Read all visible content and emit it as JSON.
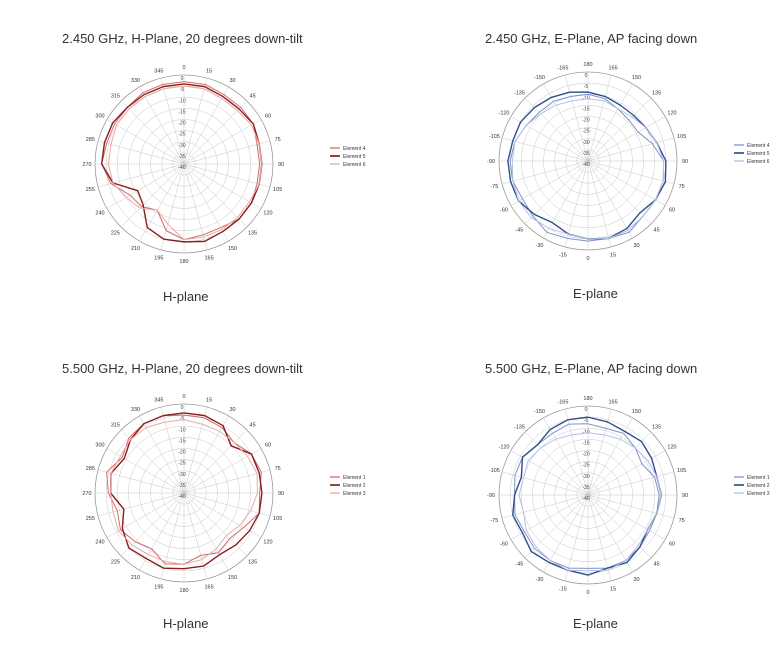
{
  "chart_data": [
    {
      "type": "polar-line",
      "title": "2.450 GHz, H-Plane, 20 degrees down-tilt",
      "subtitle": "H-plane",
      "angle_labels": [
        "0",
        "15",
        "30",
        "45",
        "60",
        "75",
        "90",
        "105",
        "120",
        "135",
        "150",
        "165",
        "180",
        "195",
        "210",
        "225",
        "240",
        "255",
        "270",
        "285",
        "300",
        "315",
        "330",
        "345"
      ],
      "radial_labels": [
        "0",
        "-5",
        "-10",
        "-15",
        "-20",
        "-25",
        "-30",
        "-35",
        "-40"
      ],
      "rlim": [
        -40,
        0
      ],
      "series": [
        {
          "name": "Element 4",
          "color": "#d46a6a",
          "width": 1.0,
          "angles": [
            0,
            15,
            30,
            45,
            60,
            75,
            90,
            105,
            120,
            135,
            150,
            165,
            180,
            195,
            210,
            225,
            240,
            255,
            270,
            285,
            300,
            315,
            330,
            345,
            360
          ],
          "values": [
            -3,
            -3,
            -4,
            -4,
            -4,
            -6,
            -6,
            -6,
            -5,
            -5,
            -7,
            -7,
            -6,
            -9,
            -16,
            -13,
            -12,
            -6,
            -3,
            -4,
            -4,
            -4,
            -3,
            -3,
            -3
          ]
        },
        {
          "name": "Element 5",
          "color": "#8b1e1e",
          "width": 1.4,
          "angles": [
            0,
            15,
            30,
            45,
            60,
            75,
            90,
            105,
            120,
            135,
            150,
            165,
            180,
            195,
            210,
            225,
            240,
            255,
            270,
            285,
            300,
            315,
            330,
            345,
            360
          ],
          "values": [
            -4,
            -4,
            -5,
            -5,
            -4,
            -5,
            -5,
            -5,
            -5,
            -5,
            -5,
            -4,
            -5,
            -5,
            -7,
            -14,
            -16,
            -7,
            -3,
            -3,
            -3,
            -4,
            -4,
            -4,
            -4
          ]
        },
        {
          "name": "Element 6",
          "color": "#e7a9a9",
          "width": 1.0,
          "angles": [
            0,
            15,
            30,
            45,
            60,
            75,
            90,
            105,
            120,
            135,
            150,
            165,
            180,
            195,
            210,
            225,
            240,
            255,
            270,
            285,
            300,
            315,
            330,
            345,
            360
          ],
          "values": [
            -5,
            -5,
            -6,
            -6,
            -5,
            -5,
            -5,
            -5,
            -6,
            -6,
            -6,
            -6,
            -6,
            -12,
            -16,
            -12,
            -10,
            -7,
            -6,
            -6,
            -5,
            -5,
            -5,
            -5,
            -5
          ]
        }
      ]
    },
    {
      "type": "polar-line",
      "title": "2.450 GHz, E-Plane, AP facing down",
      "subtitle": "E-plane",
      "angle_labels": [
        "180",
        "165",
        "150",
        "135",
        "120",
        "105",
        "90",
        "75",
        "60",
        "45",
        "30",
        "15",
        "0",
        "-15",
        "-30",
        "-45",
        "-60",
        "-75",
        "-90",
        "-105",
        "-120",
        "-135",
        "-150",
        "-165"
      ],
      "radial_labels": [
        "0",
        "-5",
        "-10",
        "-15",
        "-20",
        "-25",
        "-30",
        "-35",
        "-40"
      ],
      "rlim": [
        -40,
        0
      ],
      "series": [
        {
          "name": "Element 4",
          "color": "#7f92c9",
          "width": 1.0,
          "angles": [
            0,
            15,
            30,
            45,
            60,
            75,
            90,
            105,
            120,
            135,
            150,
            165,
            180,
            195,
            210,
            225,
            240,
            255,
            270,
            285,
            300,
            315,
            330,
            345,
            360
          ],
          "values": [
            -10,
            -11,
            -13,
            -14,
            -14,
            -10,
            -6,
            -5,
            -5,
            -5,
            -3,
            -4,
            -4,
            -4,
            -3,
            -5,
            -6,
            -5,
            -5,
            -6,
            -8,
            -9,
            -9,
            -10,
            -10
          ]
        },
        {
          "name": "Element 5",
          "color": "#2f4f8f",
          "width": 1.4,
          "angles": [
            0,
            15,
            30,
            45,
            60,
            75,
            90,
            105,
            120,
            135,
            150,
            165,
            180,
            195,
            210,
            225,
            240,
            255,
            270,
            285,
            300,
            315,
            330,
            345,
            360
          ],
          "values": [
            -9,
            -10,
            -11,
            -11,
            -10,
            -8,
            -5,
            -4,
            -5,
            -7,
            -5,
            -4,
            -5,
            -6,
            -8,
            -6,
            -4,
            -4,
            -4,
            -5,
            -5,
            -6,
            -7,
            -8,
            -9
          ]
        },
        {
          "name": "Element 6",
          "color": "#b3c0e3",
          "width": 1.0,
          "angles": [
            0,
            15,
            30,
            45,
            60,
            75,
            90,
            105,
            120,
            135,
            150,
            165,
            180,
            195,
            210,
            225,
            240,
            255,
            270,
            285,
            300,
            315,
            330,
            345,
            360
          ],
          "values": [
            -12,
            -12,
            -13,
            -12,
            -10,
            -8,
            -6,
            -5,
            -5,
            -5,
            -4,
            -4,
            -5,
            -6,
            -5,
            -4,
            -4,
            -5,
            -6,
            -6,
            -8,
            -10,
            -11,
            -12,
            -12
          ]
        }
      ]
    },
    {
      "type": "polar-line",
      "title": "5.500 GHz, H-Plane, 20 degrees down-tilt",
      "subtitle": "H-plane",
      "angle_labels": [
        "0",
        "15",
        "30",
        "45",
        "60",
        "75",
        "90",
        "105",
        "120",
        "135",
        "150",
        "165",
        "180",
        "195",
        "210",
        "225",
        "240",
        "255",
        "270",
        "285",
        "300",
        "315",
        "330",
        "345"
      ],
      "radial_labels": [
        "0",
        "-5",
        "-10",
        "-15",
        "-20",
        "-25",
        "-30",
        "-35",
        "-40"
      ],
      "rlim": [
        -40,
        0
      ],
      "series": [
        {
          "name": "Element 1",
          "color": "#d46a6a",
          "width": 1.0,
          "angles": [
            0,
            15,
            30,
            45,
            60,
            75,
            90,
            105,
            120,
            135,
            150,
            165,
            180,
            195,
            210,
            225,
            240,
            255,
            270,
            285,
            300,
            315,
            330,
            345,
            360
          ],
          "values": [
            -5,
            -5,
            -6,
            -8,
            -5,
            -4,
            -6,
            -5,
            -9,
            -11,
            -9,
            -11,
            -8,
            -7,
            -11,
            -9,
            -7,
            -9,
            -6,
            -4,
            -8,
            -5,
            -4,
            -4,
            -5
          ]
        },
        {
          "name": "Element 2",
          "color": "#8b1e1e",
          "width": 1.4,
          "angles": [
            0,
            15,
            30,
            45,
            60,
            75,
            90,
            105,
            120,
            135,
            150,
            165,
            180,
            195,
            210,
            225,
            240,
            255,
            270,
            285,
            300,
            315,
            330,
            345,
            360
          ],
          "values": [
            -4,
            -4,
            -5,
            -10,
            -5,
            -5,
            -5,
            -5,
            -6,
            -7,
            -8,
            -6,
            -6,
            -5,
            -6,
            -5,
            -8,
            -12,
            -7,
            -6,
            -9,
            -6,
            -4,
            -4,
            -4
          ]
        },
        {
          "name": "Element 3",
          "color": "#e7a9a9",
          "width": 1.0,
          "angles": [
            0,
            15,
            30,
            45,
            60,
            75,
            90,
            105,
            120,
            135,
            150,
            165,
            180,
            195,
            210,
            225,
            240,
            255,
            270,
            285,
            300,
            315,
            330,
            345,
            360
          ],
          "values": [
            -7,
            -8,
            -8,
            -8,
            -7,
            -6,
            -7,
            -9,
            -11,
            -13,
            -11,
            -9,
            -8,
            -8,
            -8,
            -7,
            -6,
            -7,
            -7,
            -6,
            -7,
            -6,
            -6,
            -7,
            -7
          ]
        }
      ]
    },
    {
      "type": "polar-line",
      "title": "5.500 GHz, E-Plane, AP facing down",
      "subtitle": "E-plane",
      "angle_labels": [
        "180",
        "165",
        "150",
        "135",
        "120",
        "105",
        "90",
        "75",
        "60",
        "45",
        "30",
        "15",
        "0",
        "-15",
        "-30",
        "-45",
        "-60",
        "-75",
        "-90",
        "-105",
        "-120",
        "-135",
        "-150",
        "-165"
      ],
      "radial_labels": [
        "0",
        "-5",
        "-10",
        "-15",
        "-20",
        "-25",
        "-30",
        "-35",
        "-40"
      ],
      "rlim": [
        -40,
        0
      ],
      "series": [
        {
          "name": "Element 1",
          "color": "#7f92c9",
          "width": 1.0,
          "angles": [
            0,
            15,
            30,
            45,
            60,
            75,
            90,
            105,
            120,
            135,
            150,
            165,
            180,
            195,
            210,
            225,
            240,
            255,
            270,
            285,
            300,
            315,
            330,
            345,
            360
          ],
          "values": [
            -8,
            -9,
            -8,
            -10,
            -12,
            -9,
            -8,
            -8,
            -8,
            -7,
            -6,
            -6,
            -7,
            -6,
            -6,
            -6,
            -7,
            -6,
            -7,
            -6,
            -6,
            -8,
            -8,
            -7,
            -8
          ]
        },
        {
          "name": "Element 2",
          "color": "#2f4f8f",
          "width": 1.4,
          "angles": [
            0,
            15,
            30,
            45,
            60,
            75,
            90,
            105,
            120,
            135,
            150,
            165,
            180,
            195,
            210,
            225,
            240,
            255,
            270,
            285,
            300,
            315,
            330,
            345,
            360
          ],
          "values": [
            -5,
            -6,
            -7,
            -6,
            -7,
            -8,
            -7,
            -8,
            -9,
            -7,
            -5,
            -6,
            -4,
            -5,
            -5,
            -4,
            -6,
            -5,
            -7,
            -9,
            -6,
            -8,
            -6,
            -5,
            -5
          ]
        },
        {
          "name": "Element 3",
          "color": "#b3c0e3",
          "width": 1.0,
          "angles": [
            0,
            15,
            30,
            45,
            60,
            75,
            90,
            105,
            120,
            135,
            150,
            165,
            180,
            195,
            210,
            225,
            240,
            255,
            270,
            285,
            300,
            315,
            330,
            345,
            360
          ],
          "values": [
            -12,
            -12,
            -11,
            -10,
            -9,
            -8,
            -7,
            -8,
            -9,
            -8,
            -6,
            -5,
            -6,
            -5,
            -6,
            -7,
            -8,
            -10,
            -9,
            -10,
            -9,
            -10,
            -11,
            -12,
            -12
          ]
        }
      ]
    }
  ]
}
